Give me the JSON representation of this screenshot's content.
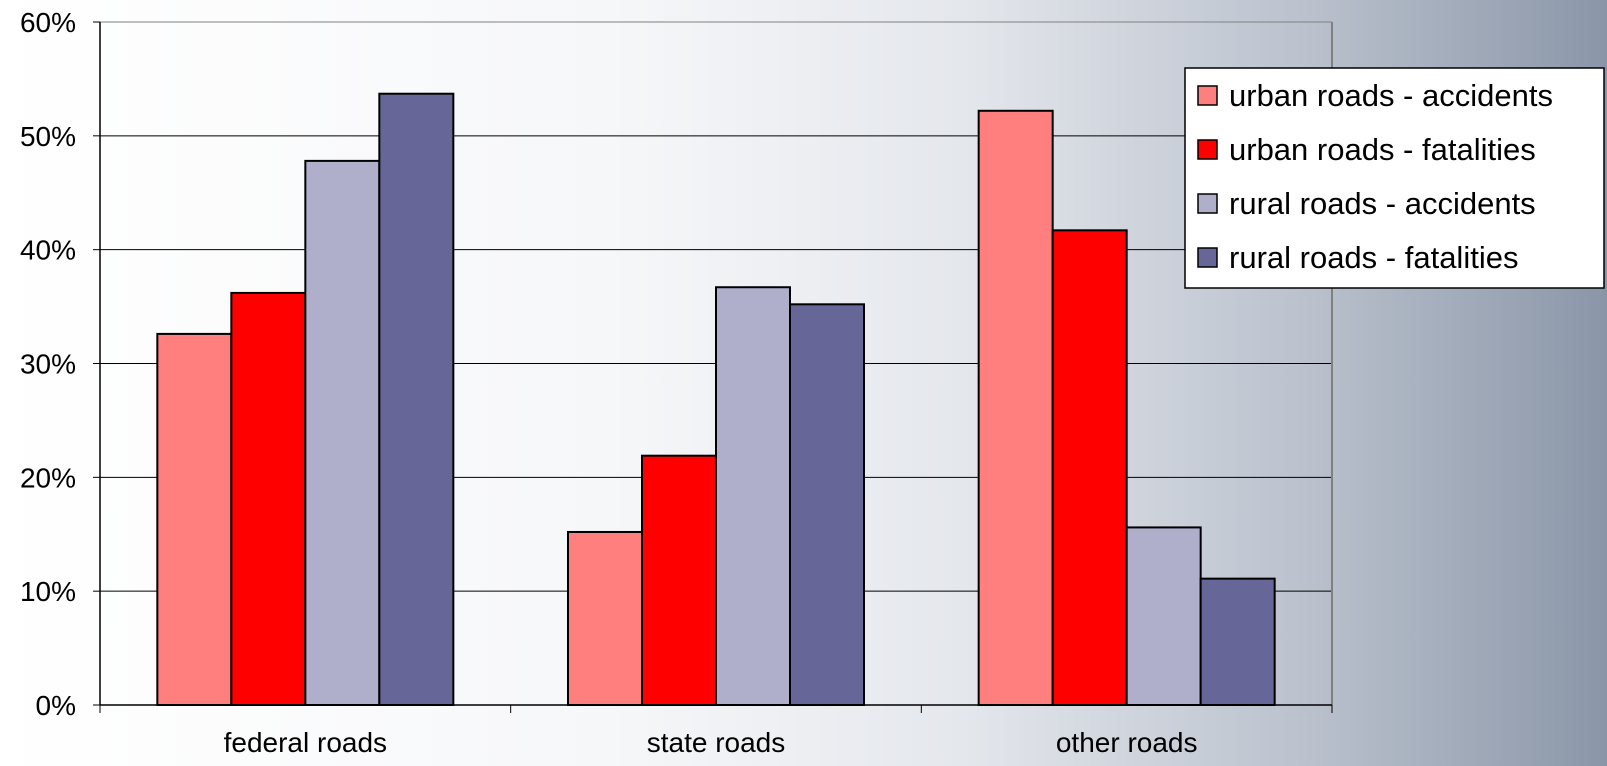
{
  "chart_data": {
    "type": "bar",
    "title": "",
    "xlabel": "",
    "ylabel": "",
    "categories": [
      "federal roads",
      "state roads",
      "other roads"
    ],
    "ylim": [
      0,
      60
    ],
    "yticks": [
      0,
      10,
      20,
      30,
      40,
      50,
      60
    ],
    "ytick_labels": [
      "0%",
      "10%",
      "20%",
      "30%",
      "40%",
      "50%",
      "60%"
    ],
    "grid": true,
    "legend_position": "top-right",
    "series": [
      {
        "name": "urban roads - accidents",
        "color": "#ff7f7f",
        "values": [
          32.6,
          15.2,
          52.2
        ]
      },
      {
        "name": "urban roads - fatalities",
        "color": "#ff0000",
        "values": [
          36.2,
          21.9,
          41.7
        ]
      },
      {
        "name": "rural roads - accidents",
        "color": "#afafcc",
        "values": [
          47.8,
          36.7,
          15.6
        ]
      },
      {
        "name": "rural roads - fatalities",
        "color": "#666699",
        "values": [
          53.7,
          35.2,
          11.1
        ]
      }
    ]
  }
}
